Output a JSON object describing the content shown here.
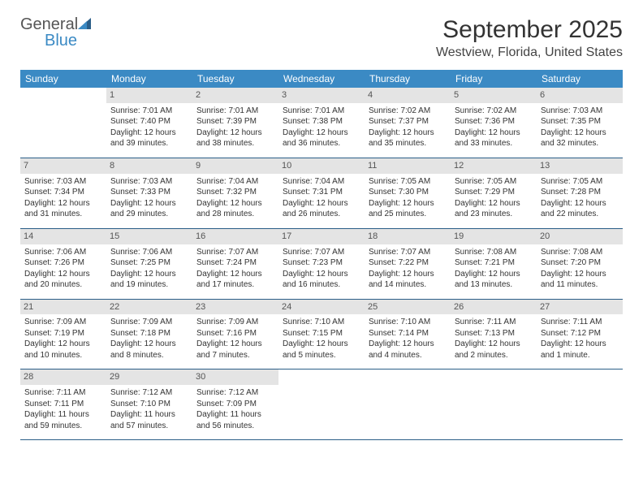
{
  "logo": {
    "general": "General",
    "blue": "Blue"
  },
  "title": "September 2025",
  "location": "Westview, Florida, United States",
  "header_color": "#3b8ac4",
  "daybar_color": "#e4e4e4",
  "rule_color": "#2b5e88",
  "weekdays": [
    "Sunday",
    "Monday",
    "Tuesday",
    "Wednesday",
    "Thursday",
    "Friday",
    "Saturday"
  ],
  "weeks": [
    [
      {
        "n": "",
        "sr": "",
        "ss": "",
        "dl": ""
      },
      {
        "n": "1",
        "sr": "Sunrise: 7:01 AM",
        "ss": "Sunset: 7:40 PM",
        "dl": "Daylight: 12 hours and 39 minutes."
      },
      {
        "n": "2",
        "sr": "Sunrise: 7:01 AM",
        "ss": "Sunset: 7:39 PM",
        "dl": "Daylight: 12 hours and 38 minutes."
      },
      {
        "n": "3",
        "sr": "Sunrise: 7:01 AM",
        "ss": "Sunset: 7:38 PM",
        "dl": "Daylight: 12 hours and 36 minutes."
      },
      {
        "n": "4",
        "sr": "Sunrise: 7:02 AM",
        "ss": "Sunset: 7:37 PM",
        "dl": "Daylight: 12 hours and 35 minutes."
      },
      {
        "n": "5",
        "sr": "Sunrise: 7:02 AM",
        "ss": "Sunset: 7:36 PM",
        "dl": "Daylight: 12 hours and 33 minutes."
      },
      {
        "n": "6",
        "sr": "Sunrise: 7:03 AM",
        "ss": "Sunset: 7:35 PM",
        "dl": "Daylight: 12 hours and 32 minutes."
      }
    ],
    [
      {
        "n": "7",
        "sr": "Sunrise: 7:03 AM",
        "ss": "Sunset: 7:34 PM",
        "dl": "Daylight: 12 hours and 31 minutes."
      },
      {
        "n": "8",
        "sr": "Sunrise: 7:03 AM",
        "ss": "Sunset: 7:33 PM",
        "dl": "Daylight: 12 hours and 29 minutes."
      },
      {
        "n": "9",
        "sr": "Sunrise: 7:04 AM",
        "ss": "Sunset: 7:32 PM",
        "dl": "Daylight: 12 hours and 28 minutes."
      },
      {
        "n": "10",
        "sr": "Sunrise: 7:04 AM",
        "ss": "Sunset: 7:31 PM",
        "dl": "Daylight: 12 hours and 26 minutes."
      },
      {
        "n": "11",
        "sr": "Sunrise: 7:05 AM",
        "ss": "Sunset: 7:30 PM",
        "dl": "Daylight: 12 hours and 25 minutes."
      },
      {
        "n": "12",
        "sr": "Sunrise: 7:05 AM",
        "ss": "Sunset: 7:29 PM",
        "dl": "Daylight: 12 hours and 23 minutes."
      },
      {
        "n": "13",
        "sr": "Sunrise: 7:05 AM",
        "ss": "Sunset: 7:28 PM",
        "dl": "Daylight: 12 hours and 22 minutes."
      }
    ],
    [
      {
        "n": "14",
        "sr": "Sunrise: 7:06 AM",
        "ss": "Sunset: 7:26 PM",
        "dl": "Daylight: 12 hours and 20 minutes."
      },
      {
        "n": "15",
        "sr": "Sunrise: 7:06 AM",
        "ss": "Sunset: 7:25 PM",
        "dl": "Daylight: 12 hours and 19 minutes."
      },
      {
        "n": "16",
        "sr": "Sunrise: 7:07 AM",
        "ss": "Sunset: 7:24 PM",
        "dl": "Daylight: 12 hours and 17 minutes."
      },
      {
        "n": "17",
        "sr": "Sunrise: 7:07 AM",
        "ss": "Sunset: 7:23 PM",
        "dl": "Daylight: 12 hours and 16 minutes."
      },
      {
        "n": "18",
        "sr": "Sunrise: 7:07 AM",
        "ss": "Sunset: 7:22 PM",
        "dl": "Daylight: 12 hours and 14 minutes."
      },
      {
        "n": "19",
        "sr": "Sunrise: 7:08 AM",
        "ss": "Sunset: 7:21 PM",
        "dl": "Daylight: 12 hours and 13 minutes."
      },
      {
        "n": "20",
        "sr": "Sunrise: 7:08 AM",
        "ss": "Sunset: 7:20 PM",
        "dl": "Daylight: 12 hours and 11 minutes."
      }
    ],
    [
      {
        "n": "21",
        "sr": "Sunrise: 7:09 AM",
        "ss": "Sunset: 7:19 PM",
        "dl": "Daylight: 12 hours and 10 minutes."
      },
      {
        "n": "22",
        "sr": "Sunrise: 7:09 AM",
        "ss": "Sunset: 7:18 PM",
        "dl": "Daylight: 12 hours and 8 minutes."
      },
      {
        "n": "23",
        "sr": "Sunrise: 7:09 AM",
        "ss": "Sunset: 7:16 PM",
        "dl": "Daylight: 12 hours and 7 minutes."
      },
      {
        "n": "24",
        "sr": "Sunrise: 7:10 AM",
        "ss": "Sunset: 7:15 PM",
        "dl": "Daylight: 12 hours and 5 minutes."
      },
      {
        "n": "25",
        "sr": "Sunrise: 7:10 AM",
        "ss": "Sunset: 7:14 PM",
        "dl": "Daylight: 12 hours and 4 minutes."
      },
      {
        "n": "26",
        "sr": "Sunrise: 7:11 AM",
        "ss": "Sunset: 7:13 PM",
        "dl": "Daylight: 12 hours and 2 minutes."
      },
      {
        "n": "27",
        "sr": "Sunrise: 7:11 AM",
        "ss": "Sunset: 7:12 PM",
        "dl": "Daylight: 12 hours and 1 minute."
      }
    ],
    [
      {
        "n": "28",
        "sr": "Sunrise: 7:11 AM",
        "ss": "Sunset: 7:11 PM",
        "dl": "Daylight: 11 hours and 59 minutes."
      },
      {
        "n": "29",
        "sr": "Sunrise: 7:12 AM",
        "ss": "Sunset: 7:10 PM",
        "dl": "Daylight: 11 hours and 57 minutes."
      },
      {
        "n": "30",
        "sr": "Sunrise: 7:12 AM",
        "ss": "Sunset: 7:09 PM",
        "dl": "Daylight: 11 hours and 56 minutes."
      },
      {
        "n": "",
        "sr": "",
        "ss": "",
        "dl": ""
      },
      {
        "n": "",
        "sr": "",
        "ss": "",
        "dl": ""
      },
      {
        "n": "",
        "sr": "",
        "ss": "",
        "dl": ""
      },
      {
        "n": "",
        "sr": "",
        "ss": "",
        "dl": ""
      }
    ]
  ]
}
